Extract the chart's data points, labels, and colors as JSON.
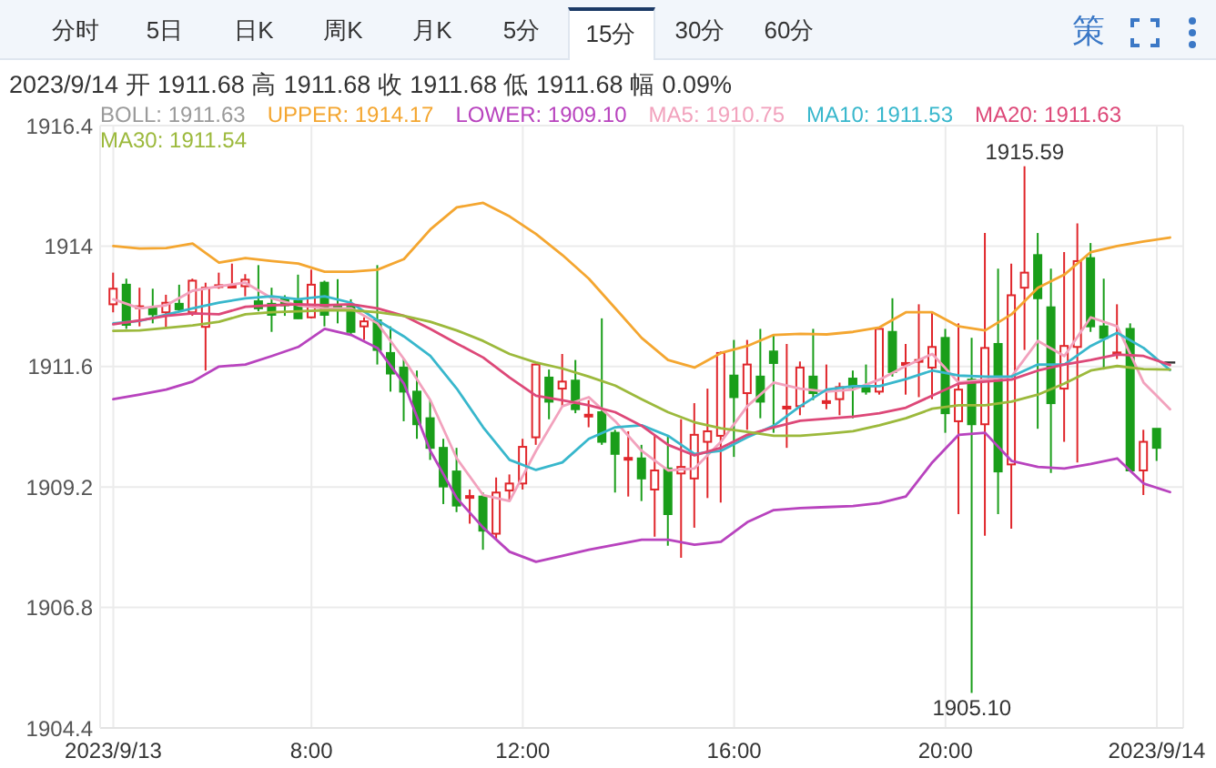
{
  "chart_data": {
    "type": "candlestick",
    "title": "2023/9/14 开 1911.68 高 1911.68 收 1911.68 低 1911.68 幅 0.09%",
    "annotations": [
      "分时",
      "5日",
      "日K",
      "周K",
      "月K",
      "5分",
      "15分",
      "30分",
      "60分",
      "策",
      "BOLL: 1911.63",
      {
        "text": "1915.59",
        "x": "2023-09-13T21:30",
        "y": 1915.59
      },
      {
        "text": "1905.10",
        "x": "2023-09-13T20:30",
        "y": 1905.1
      }
    ],
    "x": [
      "2023-09-13T04:15",
      "2023-09-13T04:30",
      "2023-09-13T04:45",
      "2023-09-13T05:00",
      "2023-09-13T05:15",
      "2023-09-13T05:30",
      "2023-09-13T05:45",
      "2023-09-13T06:00",
      "2023-09-13T06:15",
      "2023-09-13T06:30",
      "2023-09-13T06:45",
      "2023-09-13T07:00",
      "2023-09-13T07:15",
      "2023-09-13T07:30",
      "2023-09-13T07:45",
      "2023-09-13T08:00",
      "2023-09-13T08:15",
      "2023-09-13T08:30",
      "2023-09-13T08:45",
      "2023-09-13T09:00",
      "2023-09-13T09:15",
      "2023-09-13T09:30",
      "2023-09-13T09:45",
      "2023-09-13T10:00",
      "2023-09-13T10:15",
      "2023-09-13T10:30",
      "2023-09-13T10:45",
      "2023-09-13T11:00",
      "2023-09-13T11:15",
      "2023-09-13T11:30",
      "2023-09-13T11:45",
      "2023-09-13T12:00",
      "2023-09-13T12:15",
      "2023-09-13T12:30",
      "2023-09-13T12:45",
      "2023-09-13T13:00",
      "2023-09-13T13:15",
      "2023-09-13T13:30",
      "2023-09-13T13:45",
      "2023-09-13T14:00",
      "2023-09-13T14:15",
      "2023-09-13T14:30",
      "2023-09-13T14:45",
      "2023-09-13T15:00",
      "2023-09-13T15:15",
      "2023-09-13T15:30",
      "2023-09-13T15:45",
      "2023-09-13T16:00",
      "2023-09-13T16:15",
      "2023-09-13T16:30",
      "2023-09-13T16:45",
      "2023-09-13T17:00",
      "2023-09-13T17:15",
      "2023-09-13T17:30",
      "2023-09-13T17:45",
      "2023-09-13T18:00",
      "2023-09-13T18:15",
      "2023-09-13T18:30",
      "2023-09-13T18:45",
      "2023-09-13T19:00",
      "2023-09-13T19:15",
      "2023-09-13T19:30",
      "2023-09-13T19:45",
      "2023-09-13T20:00",
      "2023-09-13T20:15",
      "2023-09-13T20:30",
      "2023-09-13T20:45",
      "2023-09-13T21:00",
      "2023-09-13T21:15",
      "2023-09-13T21:30",
      "2023-09-13T21:45",
      "2023-09-13T22:00",
      "2023-09-13T22:15",
      "2023-09-13T22:30",
      "2023-09-13T22:45",
      "2023-09-13T23:00",
      "2023-09-13T23:15",
      "2023-09-13T23:30",
      "2023-09-13T23:45",
      "2023-09-14T00:00",
      "2023-09-14T00:15"
    ],
    "ohlc": [
      [
        1912.84,
        1913.47,
        1912.68,
        1913.15
      ],
      [
        1913.23,
        1913.35,
        1912.35,
        1912.43
      ],
      [
        1912.77,
        1913.17,
        1912.4,
        1912.8
      ],
      [
        1912.76,
        1913.15,
        1912.46,
        1912.64
      ],
      [
        1912.68,
        1913.03,
        1912.37,
        1912.87
      ],
      [
        1912.85,
        1913.23,
        1912.7,
        1912.74
      ],
      [
        1912.68,
        1913.35,
        1912.61,
        1913.31
      ],
      [
        1912.39,
        1913.27,
        1911.52,
        1913.17
      ],
      [
        1913.2,
        1913.47,
        1913.15,
        1913.22
      ],
      [
        1913.19,
        1913.65,
        1913.17,
        1913.21
      ],
      [
        1913.2,
        1913.44,
        1913.0,
        1913.33
      ],
      [
        1912.9,
        1913.62,
        1912.7,
        1912.76
      ],
      [
        1912.85,
        1913.17,
        1912.29,
        1912.63
      ],
      [
        1912.94,
        1913.02,
        1912.61,
        1912.82
      ],
      [
        1912.91,
        1913.43,
        1912.55,
        1912.56
      ],
      [
        1912.58,
        1913.53,
        1912.56,
        1913.23
      ],
      [
        1913.27,
        1913.31,
        1912.4,
        1912.63
      ],
      [
        1912.82,
        1913.34,
        1912.46,
        1912.72
      ],
      [
        1912.79,
        1912.94,
        1912.23,
        1912.29
      ],
      [
        1912.4,
        1912.58,
        1912.13,
        1912.5
      ],
      [
        1912.52,
        1913.62,
        1911.64,
        1911.93
      ],
      [
        1911.87,
        1912.4,
        1911.1,
        1911.46
      ],
      [
        1911.58,
        1911.75,
        1910.51,
        1911.1
      ],
      [
        1911.1,
        1911.52,
        1910.16,
        1910.45
      ],
      [
        1910.57,
        1910.93,
        1909.74,
        1909.98
      ],
      [
        1909.98,
        1910.16,
        1908.86,
        1909.21
      ],
      [
        1909.51,
        1909.98,
        1908.7,
        1908.83
      ],
      [
        1909.0,
        1909.15,
        1908.47,
        1909.02
      ],
      [
        1909.01,
        1909.09,
        1907.95,
        1908.33
      ],
      [
        1908.27,
        1909.39,
        1908.15,
        1909.09
      ],
      [
        1909.13,
        1909.45,
        1908.92,
        1909.27
      ],
      [
        1909.27,
        1910.16,
        1909.15,
        1910.0
      ],
      [
        1910.19,
        1911.66,
        1910.04,
        1911.64
      ],
      [
        1911.38,
        1911.54,
        1910.55,
        1910.9
      ],
      [
        1911.16,
        1911.85,
        1910.81,
        1911.3
      ],
      [
        1911.32,
        1911.73,
        1910.67,
        1910.75
      ],
      [
        1910.62,
        1910.93,
        1910.39,
        1910.64
      ],
      [
        1910.69,
        1912.56,
        1910.04,
        1910.1
      ],
      [
        1910.28,
        1910.34,
        1909.09,
        1909.86
      ],
      [
        1909.76,
        1910.31,
        1909.01,
        1909.78
      ],
      [
        1909.77,
        1910.04,
        1908.92,
        1909.37
      ],
      [
        1909.15,
        1910.22,
        1908.21,
        1909.53
      ],
      [
        1909.57,
        1910.22,
        1908.03,
        1908.66
      ],
      [
        1909.47,
        1910.55,
        1907.79,
        1909.6
      ],
      [
        1909.37,
        1910.87,
        1908.39,
        1910.24
      ],
      [
        1910.1,
        1911.16,
        1908.98,
        1910.31
      ],
      [
        1910.22,
        1911.9,
        1908.89,
        1911.87
      ],
      [
        1911.42,
        1912.13,
        1909.8,
        1910.99
      ],
      [
        1911.07,
        1912.13,
        1910.34,
        1911.64
      ],
      [
        1911.4,
        1912.35,
        1910.57,
        1910.9
      ],
      [
        1911.9,
        1912.23,
        1910.28,
        1911.67
      ],
      [
        1910.77,
        1912.05,
        1909.98,
        1910.8
      ],
      [
        1910.81,
        1911.7,
        1910.63,
        1911.58
      ],
      [
        1911.4,
        1912.35,
        1910.93,
        1911.07
      ],
      [
        1910.89,
        1911.64,
        1910.75,
        1910.91
      ],
      [
        1910.95,
        1911.28,
        1910.63,
        1911.19
      ],
      [
        1911.36,
        1911.52,
        1910.57,
        1911.19
      ],
      [
        1911.19,
        1911.64,
        1911.04,
        1911.1
      ],
      [
        1911.1,
        1912.37,
        1911.04,
        1912.35
      ],
      [
        1912.29,
        1912.96,
        1911.4,
        1911.49
      ],
      [
        1911.65,
        1912.05,
        1911.04,
        1911.67
      ],
      [
        1911.7,
        1912.84,
        1910.99,
        1911.73
      ],
      [
        1911.58,
        1912.68,
        1910.95,
        1911.99
      ],
      [
        1912.17,
        1912.35,
        1910.28,
        1910.67
      ],
      [
        1910.51,
        1912.46,
        1908.66,
        1911.14
      ],
      [
        1911.34,
        1912.17,
        1905.1,
        1910.45
      ],
      [
        1910.45,
        1914.26,
        1908.23,
        1911.97
      ],
      [
        1912.05,
        1913.55,
        1908.66,
        1909.51
      ],
      [
        1909.65,
        1913.65,
        1908.37,
        1913.02
      ],
      [
        1913.17,
        1915.59,
        1911.93,
        1913.47
      ],
      [
        1913.82,
        1914.26,
        1910.36,
        1912.96
      ],
      [
        1912.78,
        1913.55,
        1909.48,
        1910.87
      ],
      [
        1911.16,
        1913.88,
        1910.1,
        1912.01
      ],
      [
        1911.99,
        1914.45,
        1909.69,
        1913.7
      ],
      [
        1913.76,
        1914.06,
        1912.29,
        1912.4
      ],
      [
        1912.4,
        1913.35,
        1911.54,
        1912.17
      ],
      [
        1911.86,
        1912.84,
        1911.75,
        1911.88
      ],
      [
        1912.35,
        1912.46,
        1909.51,
        1909.53
      ],
      [
        1909.53,
        1910.34,
        1909.04,
        1910.1
      ],
      [
        1910.36,
        1910.36,
        1909.72,
        1909.98
      ],
      [
        1911.68,
        1911.68,
        1911.68,
        1911.68
      ]
    ],
    "colors": [
      "#e0262b",
      "#1a9e1a",
      "#e0262b",
      "#1a9e1a",
      "#e0262b",
      "#1a9e1a",
      "#e0262b",
      "#e0262b",
      "#e0262b",
      "#e0262b",
      "#e0262b",
      "#1a9e1a",
      "#1a9e1a",
      "#1a9e1a",
      "#1a9e1a",
      "#e0262b",
      "#1a9e1a",
      "#1a9e1a",
      "#1a9e1a",
      "#e0262b",
      "#1a9e1a",
      "#1a9e1a",
      "#1a9e1a",
      "#1a9e1a",
      "#1a9e1a",
      "#1a9e1a",
      "#1a9e1a",
      "#e0262b",
      "#1a9e1a",
      "#e0262b",
      "#e0262b",
      "#e0262b",
      "#e0262b",
      "#1a9e1a",
      "#e0262b",
      "#1a9e1a",
      "#e0262b",
      "#1a9e1a",
      "#1a9e1a",
      "#e0262b",
      "#1a9e1a",
      "#e0262b",
      "#1a9e1a",
      "#e0262b",
      "#e0262b",
      "#e0262b",
      "#e0262b",
      "#1a9e1a",
      "#e0262b",
      "#1a9e1a",
      "#1a9e1a",
      "#e0262b",
      "#e0262b",
      "#1a9e1a",
      "#e0262b",
      "#e0262b",
      "#1a9e1a",
      "#1a9e1a",
      "#e0262b",
      "#1a9e1a",
      "#e0262b",
      "#e0262b",
      "#e0262b",
      "#1a9e1a",
      "#e0262b",
      "#1a9e1a",
      "#e0262b",
      "#1a9e1a",
      "#e0262b",
      "#e0262b",
      "#1a9e1a",
      "#1a9e1a",
      "#e0262b",
      "#e0262b",
      "#1a9e1a",
      "#1a9e1a",
      "#e0262b",
      "#1a9e1a",
      "#e0262b",
      "#1a9e1a",
      "#333333"
    ],
    "series": [
      {
        "name": "UPPER: 1914.17",
        "type": "line",
        "color": "#f4a630",
        "x": [
          "2023-09-13T04:15",
          "2023-09-13T04:45",
          "2023-09-13T05:15",
          "2023-09-13T05:45",
          "2023-09-13T06:15",
          "2023-09-13T06:45",
          "2023-09-13T07:15",
          "2023-09-13T07:45",
          "2023-09-13T08:15",
          "2023-09-13T08:45",
          "2023-09-13T09:15",
          "2023-09-13T09:45",
          "2023-09-13T10:15",
          "2023-09-13T10:45",
          "2023-09-13T11:15",
          "2023-09-13T11:45",
          "2023-09-13T12:15",
          "2023-09-13T12:45",
          "2023-09-13T13:15",
          "2023-09-13T13:45",
          "2023-09-13T14:15",
          "2023-09-13T14:45",
          "2023-09-13T15:15",
          "2023-09-13T15:45",
          "2023-09-13T16:15",
          "2023-09-13T16:45",
          "2023-09-13T17:15",
          "2023-09-13T17:45",
          "2023-09-13T18:15",
          "2023-09-13T18:45",
          "2023-09-13T19:15",
          "2023-09-13T19:45",
          "2023-09-13T20:15",
          "2023-09-13T20:45",
          "2023-09-13T21:15",
          "2023-09-13T21:45",
          "2023-09-13T22:15",
          "2023-09-13T22:45",
          "2023-09-13T23:15",
          "2023-09-13T23:45",
          "2023-09-14T00:15"
        ],
        "values": [
          1914.0,
          1913.95,
          1913.96,
          1914.05,
          1913.67,
          1913.76,
          1913.7,
          1913.65,
          1913.49,
          1913.49,
          1913.53,
          1913.74,
          1914.33,
          1914.77,
          1914.86,
          1914.59,
          1914.24,
          1913.82,
          1913.35,
          1912.76,
          1912.17,
          1911.73,
          1911.58,
          1911.87,
          1912.01,
          1912.23,
          1912.25,
          1912.24,
          1912.29,
          1912.38,
          1912.68,
          1912.68,
          1912.4,
          1912.32,
          1912.64,
          1913.17,
          1913.43,
          1913.88,
          1914.0,
          1914.09,
          1914.17
        ]
      },
      {
        "name": "LOWER: 1909.10",
        "type": "line",
        "color": "#b843be",
        "x": [
          "2023-09-13T04:15",
          "2023-09-13T04:45",
          "2023-09-13T05:15",
          "2023-09-13T05:45",
          "2023-09-13T06:15",
          "2023-09-13T06:45",
          "2023-09-13T07:15",
          "2023-09-13T07:45",
          "2023-09-13T08:15",
          "2023-09-13T08:45",
          "2023-09-13T09:15",
          "2023-09-13T09:45",
          "2023-09-13T10:15",
          "2023-09-13T10:45",
          "2023-09-13T11:15",
          "2023-09-13T11:45",
          "2023-09-13T12:15",
          "2023-09-13T12:45",
          "2023-09-13T13:15",
          "2023-09-13T13:45",
          "2023-09-13T14:15",
          "2023-09-13T14:45",
          "2023-09-13T15:15",
          "2023-09-13T15:45",
          "2023-09-13T16:15",
          "2023-09-13T16:45",
          "2023-09-13T17:15",
          "2023-09-13T17:45",
          "2023-09-13T18:15",
          "2023-09-13T18:45",
          "2023-09-13T19:15",
          "2023-09-13T19:45",
          "2023-09-13T20:15",
          "2023-09-13T20:45",
          "2023-09-13T21:15",
          "2023-09-13T21:45",
          "2023-09-13T22:15",
          "2023-09-13T22:45",
          "2023-09-13T23:15",
          "2023-09-13T23:45",
          "2023-09-14T00:15"
        ],
        "values": [
          1910.95,
          1911.04,
          1911.14,
          1911.3,
          1911.6,
          1911.64,
          1911.81,
          1911.99,
          1912.35,
          1912.23,
          1911.97,
          1911.26,
          1909.92,
          1908.98,
          1908.39,
          1907.91,
          1907.71,
          1907.83,
          1907.95,
          1908.05,
          1908.15,
          1908.15,
          1908.05,
          1908.11,
          1908.5,
          1908.74,
          1908.78,
          1908.8,
          1908.82,
          1908.88,
          1909.01,
          1909.69,
          1910.24,
          1910.28,
          1909.72,
          1909.6,
          1909.57,
          1909.66,
          1909.77,
          1909.27,
          1909.1
        ]
      },
      {
        "name": "MA5: 1910.75",
        "type": "line",
        "color": "#f2a2bd",
        "x": [
          "2023-09-13T04:15",
          "2023-09-13T04:45",
          "2023-09-13T05:15",
          "2023-09-13T05:45",
          "2023-09-13T06:15",
          "2023-09-13T06:45",
          "2023-09-13T07:15",
          "2023-09-13T07:45",
          "2023-09-13T08:15",
          "2023-09-13T08:45",
          "2023-09-13T09:15",
          "2023-09-13T09:45",
          "2023-09-13T10:15",
          "2023-09-13T10:45",
          "2023-09-13T11:15",
          "2023-09-13T11:45",
          "2023-09-13T12:15",
          "2023-09-13T12:45",
          "2023-09-13T13:15",
          "2023-09-13T13:45",
          "2023-09-13T14:15",
          "2023-09-13T14:45",
          "2023-09-13T15:15",
          "2023-09-13T15:45",
          "2023-09-13T16:15",
          "2023-09-13T16:45",
          "2023-09-13T17:15",
          "2023-09-13T17:45",
          "2023-09-13T18:15",
          "2023-09-13T18:45",
          "2023-09-13T19:15",
          "2023-09-13T19:45",
          "2023-09-13T20:15",
          "2023-09-13T20:45",
          "2023-09-13T21:15",
          "2023-09-13T21:45",
          "2023-09-13T22:15",
          "2023-09-13T22:45",
          "2023-09-13T23:15",
          "2023-09-13T23:45",
          "2023-09-14T00:15"
        ],
        "values": [
          1912.94,
          1912.76,
          1912.82,
          1913.11,
          1913.2,
          1913.27,
          1912.96,
          1912.82,
          1912.76,
          1912.76,
          1912.46,
          1911.75,
          1910.93,
          1909.77,
          1909.04,
          1908.92,
          1909.92,
          1910.81,
          1910.99,
          1910.51,
          1909.92,
          1909.53,
          1909.57,
          1910.1,
          1910.81,
          1911.28,
          1911.16,
          1911.1,
          1911.14,
          1911.34,
          1911.61,
          1911.85,
          1911.28,
          1911.34,
          1911.4,
          1912.11,
          1911.81,
          1912.58,
          1912.4,
          1911.28,
          1910.75
        ]
      },
      {
        "name": "MA10: 1911.53",
        "type": "line",
        "color": "#38b7cc",
        "x": [
          "2023-09-13T04:15",
          "2023-09-13T04:45",
          "2023-09-13T05:15",
          "2023-09-13T05:45",
          "2023-09-13T06:15",
          "2023-09-13T06:45",
          "2023-09-13T07:15",
          "2023-09-13T07:45",
          "2023-09-13T08:15",
          "2023-09-13T08:45",
          "2023-09-13T09:15",
          "2023-09-13T09:45",
          "2023-09-13T10:15",
          "2023-09-13T10:45",
          "2023-09-13T11:15",
          "2023-09-13T11:45",
          "2023-09-13T12:15",
          "2023-09-13T12:45",
          "2023-09-13T13:15",
          "2023-09-13T13:45",
          "2023-09-13T14:15",
          "2023-09-13T14:45",
          "2023-09-13T15:15",
          "2023-09-13T15:45",
          "2023-09-13T16:15",
          "2023-09-13T16:45",
          "2023-09-13T17:15",
          "2023-09-13T17:45",
          "2023-09-13T18:15",
          "2023-09-13T18:45",
          "2023-09-13T19:15",
          "2023-09-13T19:45",
          "2023-09-13T20:15",
          "2023-09-13T20:45",
          "2023-09-13T21:15",
          "2023-09-13T21:45",
          "2023-09-13T22:15",
          "2023-09-13T22:45",
          "2023-09-13T23:15",
          "2023-09-13T23:45",
          "2023-09-14T00:15"
        ],
        "values": [
          1912.46,
          1912.51,
          1912.63,
          1912.76,
          1912.87,
          1912.96,
          1913.0,
          1912.94,
          1913.0,
          1912.87,
          1912.52,
          1912.2,
          1911.81,
          1911.16,
          1910.39,
          1909.74,
          1909.54,
          1909.69,
          1910.16,
          1910.39,
          1910.43,
          1910.22,
          1909.86,
          1909.92,
          1910.19,
          1910.42,
          1910.81,
          1911.14,
          1911.21,
          1911.21,
          1911.35,
          1911.52,
          1911.42,
          1911.4,
          1911.4,
          1911.64,
          1911.64,
          1912.01,
          1912.27,
          1911.97,
          1911.53
        ]
      },
      {
        "name": "MA20: 1911.63",
        "type": "line",
        "color": "#dd4878",
        "x": [
          "2023-09-13T04:15",
          "2023-09-13T04:45",
          "2023-09-13T05:15",
          "2023-09-13T05:45",
          "2023-09-13T06:15",
          "2023-09-13T06:45",
          "2023-09-13T07:15",
          "2023-09-13T07:45",
          "2023-09-13T08:15",
          "2023-09-13T08:45",
          "2023-09-13T09:15",
          "2023-09-13T09:45",
          "2023-09-13T10:15",
          "2023-09-13T10:45",
          "2023-09-13T11:15",
          "2023-09-13T11:45",
          "2023-09-13T12:15",
          "2023-09-13T12:45",
          "2023-09-13T13:15",
          "2023-09-13T13:45",
          "2023-09-13T14:15",
          "2023-09-13T14:45",
          "2023-09-13T15:15",
          "2023-09-13T15:45",
          "2023-09-13T16:15",
          "2023-09-13T16:45",
          "2023-09-13T17:15",
          "2023-09-13T17:45",
          "2023-09-13T18:15",
          "2023-09-13T18:45",
          "2023-09-13T19:15",
          "2023-09-13T19:45",
          "2023-09-13T20:15",
          "2023-09-13T20:45",
          "2023-09-13T21:15",
          "2023-09-13T21:45",
          "2023-09-13T22:15",
          "2023-09-13T22:45",
          "2023-09-13T23:15",
          "2023-09-13T23:45",
          "2023-09-14T00:15"
        ],
        "values": [
          1912.44,
          1912.52,
          1912.61,
          1912.66,
          1912.64,
          1912.79,
          1912.82,
          1912.84,
          1912.82,
          1912.84,
          1912.76,
          1912.61,
          1912.35,
          1912.06,
          1911.78,
          1911.38,
          1911.02,
          1910.93,
          1910.83,
          1910.69,
          1910.42,
          1910.04,
          1909.83,
          1909.98,
          1910.24,
          1910.39,
          1910.52,
          1910.56,
          1910.6,
          1910.67,
          1910.78,
          1911.02,
          1911.26,
          1911.3,
          1911.34,
          1911.52,
          1911.64,
          1911.73,
          1911.84,
          1911.81,
          1911.63
        ]
      },
      {
        "name": "MA30: 1911.54",
        "type": "line",
        "color": "#9cb93c",
        "x": [
          "2023-09-13T04:15",
          "2023-09-13T04:45",
          "2023-09-13T05:15",
          "2023-09-13T05:45",
          "2023-09-13T06:15",
          "2023-09-13T06:45",
          "2023-09-13T07:15",
          "2023-09-13T07:45",
          "2023-09-13T08:15",
          "2023-09-13T08:45",
          "2023-09-13T09:15",
          "2023-09-13T09:45",
          "2023-09-13T10:15",
          "2023-09-13T10:45",
          "2023-09-13T11:15",
          "2023-09-13T11:45",
          "2023-09-13T12:15",
          "2023-09-13T12:45",
          "2023-09-13T13:15",
          "2023-09-13T13:45",
          "2023-09-13T14:15",
          "2023-09-13T14:45",
          "2023-09-13T15:15",
          "2023-09-13T15:45",
          "2023-09-13T16:15",
          "2023-09-13T16:45",
          "2023-09-13T17:15",
          "2023-09-13T17:45",
          "2023-09-13T18:15",
          "2023-09-13T18:45",
          "2023-09-13T19:15",
          "2023-09-13T19:45",
          "2023-09-13T20:15",
          "2023-09-13T20:45",
          "2023-09-13T21:15",
          "2023-09-13T21:45",
          "2023-09-13T22:15",
          "2023-09-13T22:45",
          "2023-09-13T23:15",
          "2023-09-13T23:45",
          "2023-09-14T00:15"
        ],
        "values": [
          1912.31,
          1912.32,
          1912.37,
          1912.42,
          1912.49,
          1912.64,
          1912.68,
          1912.7,
          1912.72,
          1912.72,
          1912.68,
          1912.61,
          1912.49,
          1912.32,
          1912.11,
          1911.85,
          1911.68,
          1911.56,
          1911.4,
          1911.22,
          1910.95,
          1910.69,
          1910.49,
          1910.37,
          1910.3,
          1910.22,
          1910.22,
          1910.26,
          1910.31,
          1910.43,
          1910.57,
          1910.76,
          1910.83,
          1910.83,
          1910.9,
          1911.04,
          1911.26,
          1911.52,
          1911.61,
          1911.55,
          1911.54
        ]
      }
    ],
    "xlim": [
      "2023-09-13T04:00",
      "2023-09-14T00:30"
    ],
    "xticks": [
      {
        "value": "2023-09-13T04:15",
        "label": "2023/9/13"
      },
      {
        "value": "2023-09-13T08:00",
        "label": "8:00"
      },
      {
        "value": "2023-09-13T12:00",
        "label": "12:00"
      },
      {
        "value": "2023-09-13T16:00",
        "label": "16:00"
      },
      {
        "value": "2023-09-13T20:00",
        "label": "20:00"
      },
      {
        "value": "2023-09-14T00:00",
        "label": "2023/9/14"
      }
    ],
    "ylim": [
      1904.4,
      1916.4
    ],
    "yticks": [
      1904.4,
      1906.8,
      1909.2,
      1911.6,
      1914,
      1916.4
    ],
    "grid": true
  }
}
